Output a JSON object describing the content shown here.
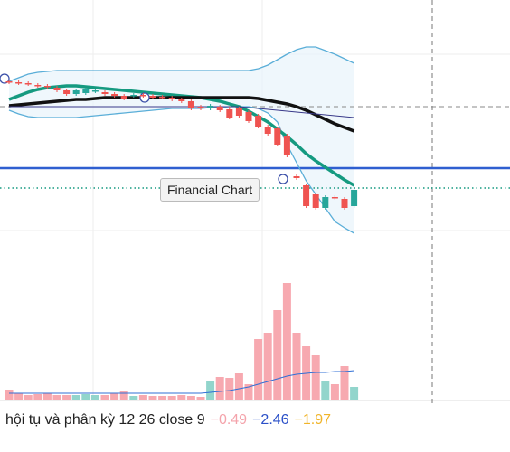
{
  "chart_data": {
    "type": "candlestick",
    "tooltip": "Financial Chart",
    "ylim": [
      0,
      300
    ],
    "volume_ylim": [
      0,
      143
    ],
    "up_color": "#26a69a",
    "down_color": "#ef5350",
    "volume_up_color": "#92d5cc",
    "volume_down_color": "#f7a9b0",
    "open": [
      210,
      209,
      208,
      206,
      205,
      203,
      200,
      196,
      197,
      199,
      198,
      196,
      194,
      194,
      195,
      194,
      193,
      192,
      190,
      188,
      182,
      180,
      182,
      179,
      180,
      176,
      172,
      160,
      158,
      150,
      105,
      95,
      85,
      70,
      82,
      80,
      72
    ],
    "close": [
      209,
      208,
      207,
      205,
      204,
      200,
      196,
      200,
      201,
      200,
      196,
      194,
      191,
      195,
      194,
      192,
      192,
      190,
      188,
      180,
      180,
      183,
      178,
      170,
      172,
      166,
      160,
      152,
      140,
      128,
      103,
      72,
      70,
      82,
      81,
      70,
      90
    ],
    "high": [
      212,
      211,
      210,
      208,
      207,
      205,
      202,
      202,
      203,
      202,
      200,
      198,
      196,
      197,
      197,
      196,
      195,
      194,
      192,
      190,
      184,
      185,
      184,
      182,
      182,
      178,
      174,
      162,
      160,
      152,
      107,
      97,
      87,
      84,
      84,
      82,
      92
    ],
    "low": [
      207,
      206,
      205,
      203,
      202,
      198,
      194,
      194,
      195,
      197,
      194,
      192,
      189,
      192,
      192,
      190,
      190,
      188,
      186,
      178,
      178,
      178,
      176,
      168,
      170,
      164,
      158,
      150,
      138,
      126,
      101,
      70,
      68,
      68,
      79,
      68,
      70
    ],
    "volume": [
      12,
      8,
      6,
      7,
      8,
      6,
      6,
      6,
      7,
      6,
      6,
      8,
      10,
      5,
      6,
      5,
      5,
      5,
      6,
      5,
      4,
      22,
      26,
      25,
      30,
      18,
      68,
      75,
      100,
      130,
      75,
      60,
      50,
      22,
      18,
      38,
      15
    ],
    "series": [
      {
        "name": "upper",
        "color": "#5aaed8",
        "values": [
          210,
          214,
          218,
          220,
          221,
          222,
          222,
          222,
          222,
          222,
          222,
          222,
          222,
          222,
          222,
          222,
          222,
          222,
          222,
          222,
          222,
          222,
          222,
          222,
          222,
          222,
          224,
          228,
          234,
          240,
          245,
          248,
          248,
          244,
          240,
          235,
          230
        ]
      },
      {
        "name": "lower",
        "color": "#5aaed8",
        "values": [
          178,
          174,
          171,
          170,
          170,
          170,
          170,
          170,
          171,
          172,
          173,
          174,
          175,
          176,
          177,
          178,
          179,
          180,
          180,
          180,
          180,
          181,
          181,
          182,
          182,
          182,
          180,
          175,
          165,
          140,
          120,
          100,
          85,
          70,
          55,
          48,
          42
        ]
      },
      {
        "name": "ema",
        "color": "#159a80",
        "values": [
          190,
          194,
          198,
          201,
          203,
          204,
          205,
          205,
          204,
          203,
          202,
          201,
          200,
          199,
          198,
          197,
          196,
          195,
          194,
          193,
          192,
          190,
          188,
          185,
          182,
          177,
          171,
          165,
          157,
          149,
          140,
          130,
          122,
          115,
          108,
          101,
          95
        ]
      },
      {
        "name": "ma",
        "color": "#111111",
        "values": [
          183,
          184,
          185,
          186,
          187,
          188,
          189,
          190,
          190,
          191,
          192,
          192,
          192,
          192,
          192,
          192,
          192,
          192,
          192,
          192,
          192,
          192,
          192,
          192,
          192,
          192,
          191,
          189,
          187,
          185,
          182,
          178,
          173,
          168,
          163,
          159,
          155
        ]
      },
      {
        "name": "base",
        "color": "#3a3a8a",
        "values": [
          182,
          182,
          182,
          182,
          182,
          182,
          182,
          182,
          182,
          182,
          182,
          182,
          182,
          182,
          182,
          182,
          182,
          182,
          182,
          182,
          182,
          182,
          182,
          182,
          182,
          181,
          180,
          179,
          178,
          177,
          176,
          175,
          174,
          173,
          172,
          171,
          170
        ]
      }
    ],
    "volume_ma": {
      "color": "#2f6fd6",
      "values": [
        8,
        8,
        8,
        8,
        8,
        8,
        8,
        8,
        8,
        8,
        8,
        8,
        8,
        8,
        8,
        8,
        8,
        8,
        8,
        8,
        8,
        9,
        10,
        11,
        13,
        15,
        18,
        21,
        24,
        27,
        29,
        30,
        31,
        31,
        32,
        32,
        33
      ]
    },
    "hlines": [
      {
        "value": 114,
        "color": "#2f5fd0"
      },
      {
        "value": 92,
        "color": "#159a80"
      },
      {
        "value": 182,
        "color": "#888888"
      }
    ],
    "legend": {
      "label": "hội tụ và phân kỳ 12 26 close 9",
      "items": [
        {
          "text": "−0.49",
          "color": "#f4a3ab"
        },
        {
          "text": "−2.46",
          "color": "#2b50c8"
        },
        {
          "text": "−1.97",
          "color": "#f0b429"
        }
      ]
    }
  }
}
